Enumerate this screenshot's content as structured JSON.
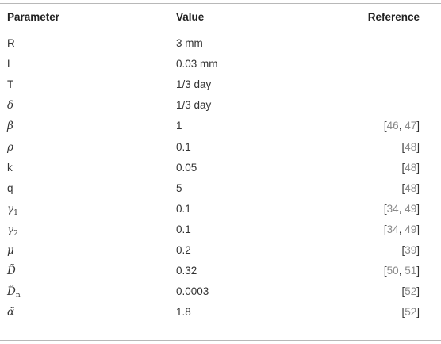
{
  "headers": {
    "parameter": "Parameter",
    "value": "Value",
    "reference": "Reference"
  },
  "rows": [
    {
      "param": "R",
      "param_style": "plain",
      "value": "3 mm",
      "refs": []
    },
    {
      "param": "L",
      "param_style": "plain",
      "value": "0.03 mm",
      "refs": []
    },
    {
      "param": "T",
      "param_style": "plain",
      "value": "1/3 day",
      "refs": []
    },
    {
      "param": "δ",
      "param_style": "math",
      "value": "1/3 day",
      "refs": []
    },
    {
      "param": "β",
      "param_style": "math",
      "value": "1",
      "refs": [
        "46",
        "47"
      ]
    },
    {
      "param": "ρ",
      "param_style": "math",
      "value": "0.1",
      "refs": [
        "48"
      ]
    },
    {
      "param": "k",
      "param_style": "plain",
      "value": "0.05",
      "refs": [
        "48"
      ]
    },
    {
      "param": "q",
      "param_style": "plain",
      "value": "5",
      "refs": [
        "48"
      ]
    },
    {
      "param": "γ",
      "param_sub": "1",
      "param_style": "math",
      "value": "0.1",
      "refs": [
        "34",
        "49"
      ]
    },
    {
      "param": "γ",
      "param_sub": "2",
      "param_style": "math",
      "value": "0.1",
      "refs": [
        "34",
        "49"
      ]
    },
    {
      "param": "μ",
      "param_style": "math",
      "value": "0.2",
      "refs": [
        "39"
      ]
    },
    {
      "param": "D̃",
      "param_style": "math",
      "value": "0.32",
      "refs": [
        "50",
        "51"
      ]
    },
    {
      "param": "D̃",
      "param_sub": "n",
      "param_style": "math",
      "value": "0.0003",
      "refs": [
        "52"
      ]
    },
    {
      "param": "α̃",
      "param_style": "math",
      "value": "1.8",
      "refs": [
        "52"
      ]
    }
  ]
}
